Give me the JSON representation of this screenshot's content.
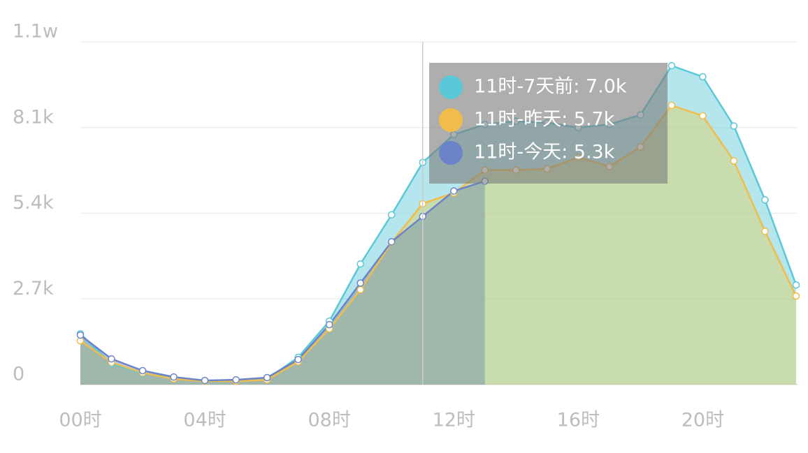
{
  "chart_data": {
    "type": "line",
    "area": true,
    "categories": [
      "00时",
      null,
      null,
      null,
      "04时",
      null,
      null,
      null,
      "08时",
      null,
      null,
      null,
      "12时",
      null,
      null,
      null,
      "16时",
      null,
      null,
      null,
      "20时",
      null,
      null,
      null
    ],
    "series": [
      {
        "name": "7天前",
        "color": "#5bc8d8",
        "values": [
          1600,
          660,
          350,
          220,
          110,
          130,
          175,
          860,
          2000,
          3800,
          5350,
          7000,
          7880,
          8200,
          8300,
          8250,
          8100,
          8200,
          8500,
          10050,
          9700,
          8150,
          5820,
          3140
        ]
      },
      {
        "name": "昨天",
        "color": "#f2bc4a",
        "values": [
          1380,
          700,
          370,
          180,
          110,
          110,
          150,
          720,
          1760,
          2990,
          4480,
          5700,
          6040,
          6760,
          6760,
          6800,
          7160,
          6870,
          7490,
          8800,
          8470,
          7050,
          4830,
          2790
        ]
      },
      {
        "name": "今天",
        "color": "#6b84c9",
        "values": [
          1560,
          810,
          440,
          240,
          130,
          150,
          220,
          790,
          1890,
          3200,
          4500,
          5300,
          6100,
          6410,
          null,
          null,
          null,
          null,
          null,
          null,
          null,
          null,
          null,
          null
        ]
      }
    ],
    "ylim": [
      0,
      10800
    ],
    "yticks": [
      0,
      {
        "value": 2700,
        "label": "2.7k"
      },
      {
        "value": 5400,
        "label": "5.4k"
      },
      {
        "value": 8100,
        "label": "8.1k"
      },
      {
        "value": 10800,
        "label": "1.1w"
      }
    ],
    "grid": true,
    "tooltip": [
      "11时-7天前: 7.0k",
      "11时-昨天: 5.7k",
      "11时-今天: 5.3k"
    ]
  }
}
